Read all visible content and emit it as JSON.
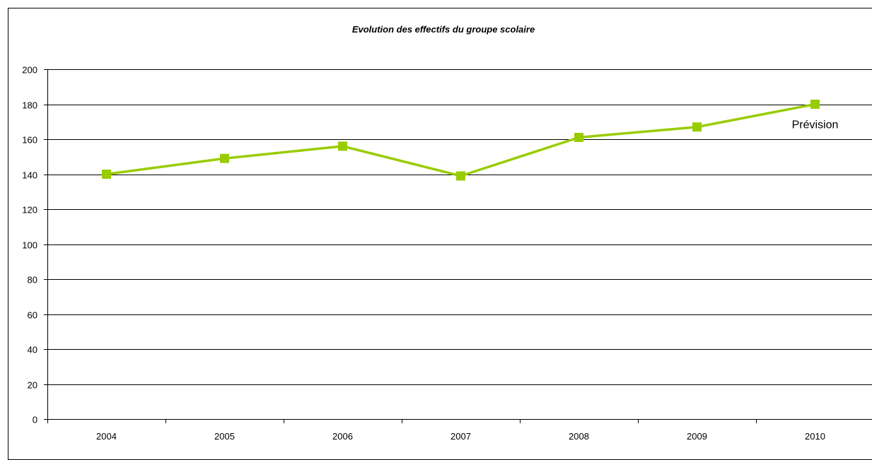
{
  "chart_data": {
    "type": "line",
    "title": "Evolution des effectifs du groupe scolaire",
    "xlabel": "",
    "ylabel": "",
    "categories": [
      "2004",
      "2005",
      "2006",
      "2007",
      "2008",
      "2009",
      "2010"
    ],
    "series": [
      {
        "values": [
          140,
          149,
          156,
          139,
          161,
          167,
          180
        ],
        "color": "#99cc00",
        "marker": "square"
      }
    ],
    "ylim": [
      0,
      200
    ],
    "yticks": [
      0,
      20,
      40,
      60,
      80,
      100,
      120,
      140,
      160,
      180,
      200
    ],
    "grid": true,
    "legend": "none",
    "annotations": [
      {
        "text": "Prévision",
        "category": "2010"
      }
    ]
  }
}
